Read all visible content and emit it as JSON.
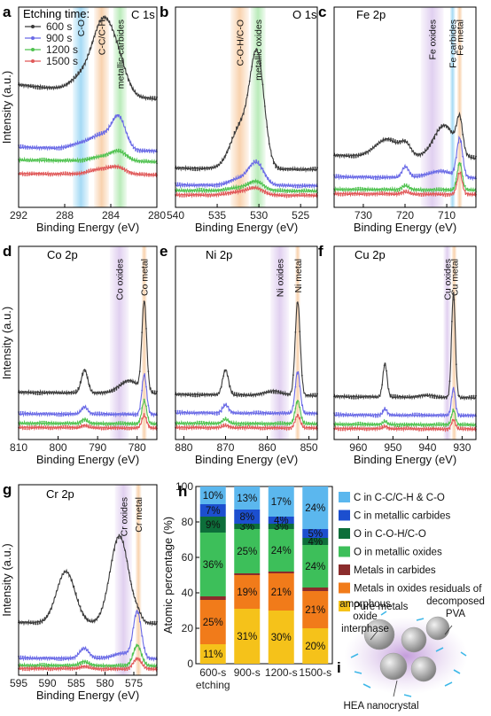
{
  "chart_data": [
    {
      "id": "a",
      "type": "line",
      "panel_label": "a",
      "title": "C 1s",
      "xlabel": "Binding Energy (eV)",
      "ylabel": "Intensity (a.u.)",
      "xlim": [
        292,
        280
      ],
      "x_ticks": [
        292,
        288,
        284,
        280
      ],
      "legend_title": "Etching time:",
      "legend": [
        "600 s",
        "900 s",
        "1200 s",
        "1500 s"
      ],
      "bands": [
        {
          "label": "C-O",
          "center": 286.6,
          "width": 1.4,
          "color": "#8fd1f2"
        },
        {
          "label": "C-C/C-H",
          "center": 284.8,
          "width": 1.3,
          "color": "#f7c79a"
        },
        {
          "label": "metallic carbides",
          "center": 283.2,
          "width": 1.2,
          "color": "#a8e6a8"
        }
      ],
      "series": [
        {
          "name": "600 s",
          "color": "#3a3a3a",
          "offset": 1.0,
          "peaks": [
            [
              284.6,
              0.66,
              0.95
            ],
            [
              286.5,
              0.12,
              1.0
            ],
            [
              283.2,
              0.18,
              0.7
            ]
          ],
          "base": 0.22
        },
        {
          "name": "900 s",
          "color": "#6a6ae6",
          "offset": 0.52,
          "peaks": [
            [
              283.3,
              0.28,
              0.6
            ],
            [
              284.7,
              0.12,
              0.9
            ],
            [
              286.4,
              0.05,
              1.0
            ]
          ],
          "base": 0.06
        },
        {
          "name": "1200 s",
          "color": "#4fc24f",
          "offset": 0.42,
          "peaks": [
            [
              283.3,
              0.08,
              0.7
            ],
            [
              284.7,
              0.04,
              1.0
            ]
          ],
          "base": 0.03
        },
        {
          "name": "1500 s",
          "color": "#e05858",
          "offset": 0.3,
          "peaks": [
            [
              283.3,
              0.05,
              0.7
            ],
            [
              284.7,
              0.05,
              1.0
            ]
          ],
          "base": 0.02
        }
      ]
    },
    {
      "id": "b",
      "type": "line",
      "panel_label": "b",
      "title": "O 1s",
      "xlabel": "Binding Energy (eV)",
      "ylabel": "",
      "xlim": [
        540,
        523
      ],
      "x_ticks": [
        540,
        535,
        530,
        525
      ],
      "bands": [
        {
          "label": "C-O-H/C-O",
          "center": 532.3,
          "width": 2.2,
          "color": "#f7c79a"
        },
        {
          "label": "metallic oxides",
          "center": 530.1,
          "width": 1.8,
          "color": "#a8e6a8"
        }
      ],
      "series": [
        {
          "name": "600 s",
          "color": "#3a3a3a",
          "offset": 0.35,
          "peaks": [
            [
              530.2,
              1.0,
              0.85
            ],
            [
              532.2,
              0.38,
              1.2
            ]
          ],
          "base": 0.02
        },
        {
          "name": "900 s",
          "color": "#6a6ae6",
          "offset": 0.2,
          "peaks": [
            [
              530.3,
              0.2,
              0.9
            ],
            [
              532.3,
              0.06,
              1.2
            ]
          ],
          "base": 0.01
        },
        {
          "name": "1200 s",
          "color": "#4fc24f",
          "offset": 0.15,
          "peaks": [
            [
              530.3,
              0.08,
              0.9
            ],
            [
              532.3,
              0.03,
              1.2
            ]
          ],
          "base": 0.01
        },
        {
          "name": "1500 s",
          "color": "#e05858",
          "offset": 0.11,
          "peaks": [
            [
              530.3,
              0.06,
              0.9
            ],
            [
              532.3,
              0.03,
              1.2
            ]
          ],
          "base": 0.01
        }
      ]
    },
    {
      "id": "c",
      "type": "line",
      "panel_label": "c",
      "title": "Fe 2p",
      "xlabel": "Binding Energy (eV)",
      "ylabel": "",
      "xlim": [
        737,
        703
      ],
      "x_ticks": [
        730,
        720,
        710
      ],
      "bands": [
        {
          "label": "Fe oxides",
          "center": 713.5,
          "width": 5.5,
          "color": "#d9c4ec"
        },
        {
          "label": "Fe carbides",
          "center": 708.6,
          "width": 1.2,
          "color": "#8fd1f2"
        },
        {
          "label": "Fe metal",
          "center": 706.9,
          "width": 1.2,
          "color": "#f7c79a"
        }
      ],
      "series": [
        {
          "name": "600 s",
          "color": "#3a3a3a",
          "offset": 0.45,
          "peaks": [
            [
              710.6,
              0.3,
              2.5
            ],
            [
              724.3,
              0.16,
              2.8
            ],
            [
              719.8,
              0.1,
              1.2
            ],
            [
              706.9,
              0.3,
              0.7
            ]
          ],
          "base": 0.05
        },
        {
          "name": "900 s",
          "color": "#6a6ae6",
          "offset": 0.27,
          "peaks": [
            [
              706.9,
              0.35,
              0.7
            ],
            [
              719.9,
              0.1,
              0.8
            ],
            [
              711.5,
              0.06,
              3.0
            ]
          ],
          "base": 0.02
        },
        {
          "name": "1200 s",
          "color": "#4fc24f",
          "offset": 0.16,
          "peaks": [
            [
              706.9,
              0.25,
              0.6
            ],
            [
              719.9,
              0.04,
              0.8
            ]
          ],
          "base": 0.01
        },
        {
          "name": "1500 s",
          "color": "#e05858",
          "offset": 0.12,
          "peaks": [
            [
              706.9,
              0.2,
              0.6
            ],
            [
              719.9,
              0.02,
              0.8
            ]
          ],
          "base": 0.01
        }
      ]
    },
    {
      "id": "d",
      "type": "line",
      "panel_label": "d",
      "title": "Co 2p",
      "xlabel": "Binding Energy (eV)",
      "ylabel": "Intensity (a.u.)",
      "xlim": [
        810,
        775
      ],
      "x_ticks": [
        810,
        800,
        790,
        780
      ],
      "bands": [
        {
          "label": "Co oxides",
          "center": 784.5,
          "width": 4.8,
          "color": "#d9c4ec"
        },
        {
          "label": "Co metal",
          "center": 778.2,
          "width": 1.3,
          "color": "#f7c79a"
        }
      ],
      "series": [
        {
          "name": "600 s",
          "color": "#3a3a3a",
          "offset": 0.44,
          "peaks": [
            [
              778.2,
              0.85,
              0.6
            ],
            [
              793.3,
              0.22,
              0.8
            ],
            [
              782.0,
              0.12,
              2.5
            ]
          ],
          "base": 0.02
        },
        {
          "name": "900 s",
          "color": "#6a6ae6",
          "offset": 0.24,
          "peaks": [
            [
              778.2,
              0.38,
              0.6
            ],
            [
              793.3,
              0.07,
              0.8
            ]
          ],
          "base": 0.01
        },
        {
          "name": "1200 s",
          "color": "#4fc24f",
          "offset": 0.15,
          "peaks": [
            [
              778.2,
              0.22,
              0.6
            ],
            [
              793.3,
              0.04,
              0.8
            ]
          ],
          "base": 0.01
        },
        {
          "name": "1500 s",
          "color": "#e05858",
          "offset": 0.11,
          "peaks": [
            [
              778.2,
              0.12,
              0.6
            ],
            [
              793.3,
              0.02,
              0.8
            ]
          ],
          "base": 0.01
        }
      ]
    },
    {
      "id": "e",
      "type": "line",
      "panel_label": "e",
      "title": "Ni 2p",
      "xlabel": "Binding Energy (eV)",
      "ylabel": "",
      "xlim": [
        882,
        848
      ],
      "x_ticks": [
        880,
        870,
        860,
        850
      ],
      "bands": [
        {
          "label": "Ni oxides",
          "center": 857.0,
          "width": 4.5,
          "color": "#d9c4ec"
        },
        {
          "label": "Ni metal",
          "center": 852.7,
          "width": 1.2,
          "color": "#f7c79a"
        }
      ],
      "series": [
        {
          "name": "600 s",
          "color": "#3a3a3a",
          "offset": 0.42,
          "peaks": [
            [
              852.7,
              0.9,
              0.6
            ],
            [
              870.0,
              0.24,
              0.7
            ],
            [
              858.5,
              0.04,
              2.0
            ]
          ],
          "base": 0.02
        },
        {
          "name": "900 s",
          "color": "#6a6ae6",
          "offset": 0.25,
          "peaks": [
            [
              852.7,
              0.4,
              0.6
            ],
            [
              870.0,
              0.08,
              0.7
            ]
          ],
          "base": 0.01
        },
        {
          "name": "1200 s",
          "color": "#4fc24f",
          "offset": 0.15,
          "peaks": [
            [
              852.7,
              0.22,
              0.6
            ],
            [
              870.0,
              0.04,
              0.7
            ]
          ],
          "base": 0.01
        },
        {
          "name": "1500 s",
          "color": "#e05858",
          "offset": 0.11,
          "peaks": [
            [
              852.7,
              0.12,
              0.6
            ],
            [
              870.0,
              0.02,
              0.7
            ]
          ],
          "base": 0.01
        }
      ]
    },
    {
      "id": "f",
      "type": "line",
      "panel_label": "f",
      "title": "Cu 2p",
      "xlabel": "Binding Energy (eV)",
      "ylabel": "",
      "xlim": [
        967,
        926
      ],
      "x_ticks": [
        960,
        950,
        940,
        930
      ],
      "bands": [
        {
          "label": "Cu oxides",
          "center": 934.3,
          "width": 2.2,
          "color": "#d9c4ec"
        },
        {
          "label": "Cu metal",
          "center": 932.3,
          "width": 1.4,
          "color": "#f7c79a"
        }
      ],
      "series": [
        {
          "name": "600 s",
          "color": "#3a3a3a",
          "offset": 0.4,
          "peaks": [
            [
              932.5,
              1.0,
              0.55
            ],
            [
              952.3,
              0.32,
              0.6
            ],
            [
              940.0,
              0.02,
              2.0
            ]
          ],
          "base": 0.02
        },
        {
          "name": "900 s",
          "color": "#6a6ae6",
          "offset": 0.23,
          "peaks": [
            [
              932.5,
              0.26,
              0.55
            ],
            [
              952.3,
              0.06,
              0.6
            ]
          ],
          "base": 0.01
        },
        {
          "name": "1200 s",
          "color": "#4fc24f",
          "offset": 0.14,
          "peaks": [
            [
              932.5,
              0.14,
              0.55
            ],
            [
              952.3,
              0.03,
              0.6
            ]
          ],
          "base": 0.01
        },
        {
          "name": "1500 s",
          "color": "#e05858",
          "offset": 0.1,
          "peaks": [
            [
              932.5,
              0.09,
              0.55
            ],
            [
              952.3,
              0.02,
              0.6
            ]
          ],
          "base": 0.01
        }
      ]
    },
    {
      "id": "g",
      "type": "line",
      "panel_label": "g",
      "title": "Cr 2p",
      "xlabel": "Binding Energy (eV)",
      "ylabel": "Intensity (a.u.)",
      "xlim": [
        595,
        571
      ],
      "x_ticks": [
        595,
        590,
        585,
        580,
        575
      ],
      "bands": [
        {
          "label": "Cr oxides",
          "center": 576.8,
          "width": 3.0,
          "color": "#d9c4ec"
        },
        {
          "label": "Cr metal",
          "center": 574.2,
          "width": 1.0,
          "color": "#f7c79a"
        }
      ],
      "series": [
        {
          "name": "600 s",
          "color": "#3a3a3a",
          "offset": 0.5,
          "peaks": [
            [
              577.5,
              0.85,
              1.6
            ],
            [
              586.8,
              0.5,
              1.6
            ],
            [
              574.3,
              0.05,
              0.6
            ]
          ],
          "base": 0.02
        },
        {
          "name": "900 s",
          "color": "#6a6ae6",
          "offset": 0.16,
          "peaks": [
            [
              574.4,
              0.45,
              0.7
            ],
            [
              583.6,
              0.1,
              0.8
            ],
            [
              577.0,
              0.05,
              1.6
            ]
          ],
          "base": 0.01
        },
        {
          "name": "1200 s",
          "color": "#4fc24f",
          "offset": 0.09,
          "peaks": [
            [
              574.4,
              0.2,
              0.7
            ],
            [
              583.6,
              0.04,
              0.8
            ]
          ],
          "base": 0.01
        },
        {
          "name": "1500 s",
          "color": "#e05858",
          "offset": 0.06,
          "peaks": [
            [
              574.4,
              0.1,
              0.7
            ],
            [
              583.6,
              0.02,
              0.8
            ]
          ],
          "base": 0.01
        }
      ]
    },
    {
      "id": "h",
      "type": "bar",
      "stacked": true,
      "panel_label": "h",
      "title": "",
      "xlabel": "",
      "ylabel": "Atomic percentage (%)",
      "ylim": [
        0,
        100
      ],
      "y_ticks": [
        0,
        20,
        40,
        60,
        80,
        100
      ],
      "categories": [
        "600-s",
        "900-s",
        "1200-s",
        "1500-s"
      ],
      "category_sub": [
        "etching",
        "",
        "",
        ""
      ],
      "series": [
        {
          "name": "Pure metals",
          "color": "#f5c21a",
          "values": [
            11,
            31,
            30,
            20
          ],
          "labels": [
            "11%",
            "31%",
            "30%",
            "20%"
          ]
        },
        {
          "name": "Metals in oxides",
          "color": "#f17b1a",
          "values": [
            25,
            19,
            21,
            21
          ],
          "labels": [
            "25%",
            "19%",
            "21%",
            "21%"
          ]
        },
        {
          "name": "Metals in carbides",
          "color": "#8b2c2c",
          "values": [
            2,
            1,
            1,
            2
          ],
          "labels": [
            "",
            "",
            "",
            ""
          ]
        },
        {
          "name": "O in metallic oxides",
          "color": "#3dbf5a",
          "values": [
            36,
            25,
            24,
            24
          ],
          "labels": [
            "36%",
            "25%",
            "24%",
            "24%"
          ]
        },
        {
          "name": "O in C-O-H/C-O",
          "color": "#0d6e3a",
          "values": [
            9,
            3,
            3,
            4
          ],
          "labels": [
            "9%",
            "3%",
            "3%",
            "4%"
          ]
        },
        {
          "name": "C in metallic carbides",
          "color": "#1c4fcf",
          "values": [
            7,
            8,
            4,
            5
          ],
          "labels": [
            "7%",
            "8%",
            "4%",
            "5%"
          ]
        },
        {
          "name": "C in C-C/C-H & C-O",
          "color": "#5bb7ee",
          "values": [
            10,
            13,
            17,
            24
          ],
          "labels": [
            "10%",
            "13%",
            "17%",
            "24%"
          ]
        }
      ],
      "legend_order": [
        "C in C-C/C-H & C-O",
        "C in metallic carbides",
        "O in C-O-H/C-O",
        "O in metallic oxides",
        "Metals in carbides",
        "Metals in oxides",
        "Pure metals"
      ]
    }
  ],
  "schematic": {
    "panel_label": "i",
    "label_oxide": [
      "amorphous",
      "oxide",
      "interphase"
    ],
    "label_pva": [
      "residuals of",
      "decomposed",
      "PVA"
    ],
    "label_hea": "HEA nanocrystal"
  }
}
